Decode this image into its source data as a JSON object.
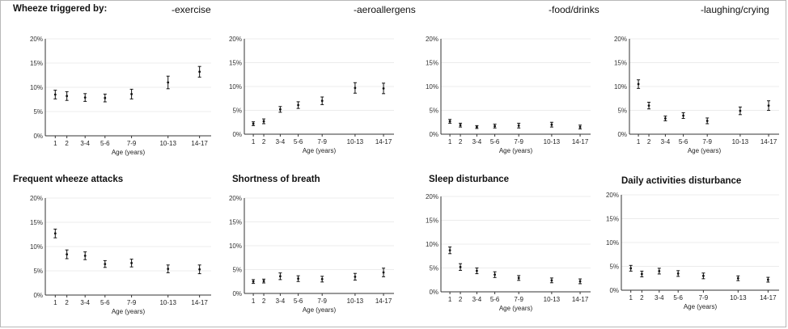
{
  "headers": {
    "row1_title": "Wheeze triggered by:",
    "row1_sub": [
      "-exercise",
      "-aeroallergens",
      "-food/drinks",
      "-laughing/crying"
    ],
    "row2_titles": [
      "Frequent wheeze attacks",
      "Shortness of breath",
      "Sleep disturbance",
      "Daily activities disturbance"
    ]
  },
  "chart_data": [
    {
      "type": "scatter",
      "title": "-exercise",
      "xlabel": "Age (years)",
      "categories": [
        "1",
        "2",
        "3-4",
        "5-6",
        "7-9",
        "10-13",
        "14-17"
      ],
      "values": [
        8.5,
        8.2,
        7.9,
        7.8,
        8.6,
        11.0,
        13.2
      ],
      "ci_lower": [
        7.6,
        7.3,
        7.1,
        7.0,
        7.6,
        9.7,
        12.1
      ],
      "ci_upper": [
        9.4,
        9.1,
        8.7,
        8.6,
        9.6,
        12.3,
        14.3
      ],
      "yticks": [
        "0%",
        "5%",
        "10%",
        "15%",
        "20%"
      ],
      "ylim": [
        0,
        20
      ],
      "grid": "horizontal"
    },
    {
      "type": "scatter",
      "title": "-aeroallergens",
      "xlabel": "Age (years)",
      "categories": [
        "1",
        "2",
        "3-4",
        "5-6",
        "7-9",
        "10-13",
        "14-17"
      ],
      "values": [
        2.2,
        2.7,
        5.2,
        6.1,
        7.0,
        9.7,
        9.6
      ],
      "ci_lower": [
        1.8,
        2.2,
        4.6,
        5.4,
        6.2,
        8.6,
        8.5
      ],
      "ci_upper": [
        2.6,
        3.2,
        5.8,
        6.8,
        7.8,
        10.8,
        10.7
      ],
      "yticks": [
        "0%",
        "5%",
        "10%",
        "15%",
        "20%"
      ],
      "ylim": [
        0,
        20
      ],
      "grid": "horizontal"
    },
    {
      "type": "scatter",
      "title": "-food/drinks",
      "xlabel": "Age (years)",
      "categories": [
        "1",
        "2",
        "3-4",
        "5-6",
        "7-9",
        "10-13",
        "14-17"
      ],
      "values": [
        2.7,
        1.9,
        1.5,
        1.7,
        1.8,
        2.0,
        1.5
      ],
      "ci_lower": [
        2.3,
        1.5,
        1.2,
        1.3,
        1.3,
        1.5,
        1.1
      ],
      "ci_upper": [
        3.1,
        2.3,
        1.8,
        2.1,
        2.3,
        2.5,
        1.9
      ],
      "yticks": [
        "0%",
        "5%",
        "10%",
        "15%",
        "20%"
      ],
      "ylim": [
        0,
        20
      ],
      "grid": "horizontal"
    },
    {
      "type": "scatter",
      "title": "-laughing/crying",
      "xlabel": "Age (years)",
      "categories": [
        "1",
        "2",
        "3-4",
        "5-6",
        "7-9",
        "10-13",
        "14-17"
      ],
      "values": [
        10.5,
        6.0,
        3.3,
        3.9,
        2.8,
        4.9,
        6.0
      ],
      "ci_lower": [
        9.6,
        5.3,
        2.8,
        3.3,
        2.2,
        4.1,
        5.0
      ],
      "ci_upper": [
        11.4,
        6.7,
        3.8,
        4.5,
        3.4,
        5.7,
        7.0
      ],
      "yticks": [
        "0%",
        "5%",
        "10%",
        "15%",
        "20%"
      ],
      "ylim": [
        0,
        20
      ],
      "grid": "horizontal"
    },
    {
      "type": "scatter",
      "title": "Frequent wheeze attacks",
      "xlabel": "Age (years)",
      "categories": [
        "1",
        "2",
        "3-4",
        "5-6",
        "7-9",
        "10-13",
        "14-17"
      ],
      "values": [
        12.7,
        8.4,
        8.1,
        6.4,
        6.6,
        5.4,
        5.3
      ],
      "ci_lower": [
        11.8,
        7.5,
        7.3,
        5.7,
        5.8,
        4.6,
        4.4
      ],
      "ci_upper": [
        13.6,
        9.3,
        8.9,
        7.1,
        7.4,
        6.2,
        6.2
      ],
      "yticks": [
        "0%",
        "5%",
        "10%",
        "15%",
        "20%"
      ],
      "ylim": [
        0,
        20
      ],
      "grid": "horizontal"
    },
    {
      "type": "scatter",
      "title": "Shortness of breath",
      "xlabel": "Age (years)",
      "categories": [
        "1",
        "2",
        "3-4",
        "5-6",
        "7-9",
        "10-13",
        "14-17"
      ],
      "values": [
        2.5,
        2.6,
        3.6,
        3.1,
        3.0,
        3.5,
        4.4
      ],
      "ci_lower": [
        2.1,
        2.2,
        2.9,
        2.5,
        2.4,
        2.8,
        3.5
      ],
      "ci_upper": [
        2.9,
        3.0,
        4.3,
        3.7,
        3.6,
        4.2,
        5.3
      ],
      "yticks": [
        "0%",
        "5%",
        "10%",
        "15%",
        "20%"
      ],
      "ylim": [
        0,
        20
      ],
      "grid": "horizontal"
    },
    {
      "type": "scatter",
      "title": "Sleep disturbance",
      "xlabel": "Age (years)",
      "categories": [
        "1",
        "2",
        "3-4",
        "5-6",
        "7-9",
        "10-13",
        "14-17"
      ],
      "values": [
        8.7,
        5.2,
        4.4,
        3.6,
        2.9,
        2.4,
        2.2
      ],
      "ci_lower": [
        8.0,
        4.5,
        3.8,
        3.0,
        2.4,
        1.9,
        1.7
      ],
      "ci_upper": [
        9.4,
        5.9,
        5.0,
        4.2,
        3.4,
        2.9,
        2.7
      ],
      "yticks": [
        "0%",
        "5%",
        "10%",
        "15%",
        "20%"
      ],
      "ylim": [
        0,
        20
      ],
      "grid": "horizontal"
    },
    {
      "type": "scatter",
      "title": "Daily activities disturbance",
      "xlabel": "Age (years)",
      "categories": [
        "1",
        "2",
        "3-4",
        "5-6",
        "7-9",
        "10-13",
        "14-17"
      ],
      "values": [
        4.6,
        3.4,
        4.0,
        3.5,
        3.0,
        2.5,
        2.2
      ],
      "ci_lower": [
        4.0,
        2.8,
        3.4,
        2.9,
        2.4,
        2.0,
        1.7
      ],
      "ci_upper": [
        5.2,
        4.0,
        4.6,
        4.1,
        3.6,
        3.0,
        2.7
      ],
      "yticks": [
        "0%",
        "5%",
        "10%",
        "15%",
        "20%"
      ],
      "ylim": [
        0,
        20
      ],
      "grid": "horizontal"
    }
  ]
}
